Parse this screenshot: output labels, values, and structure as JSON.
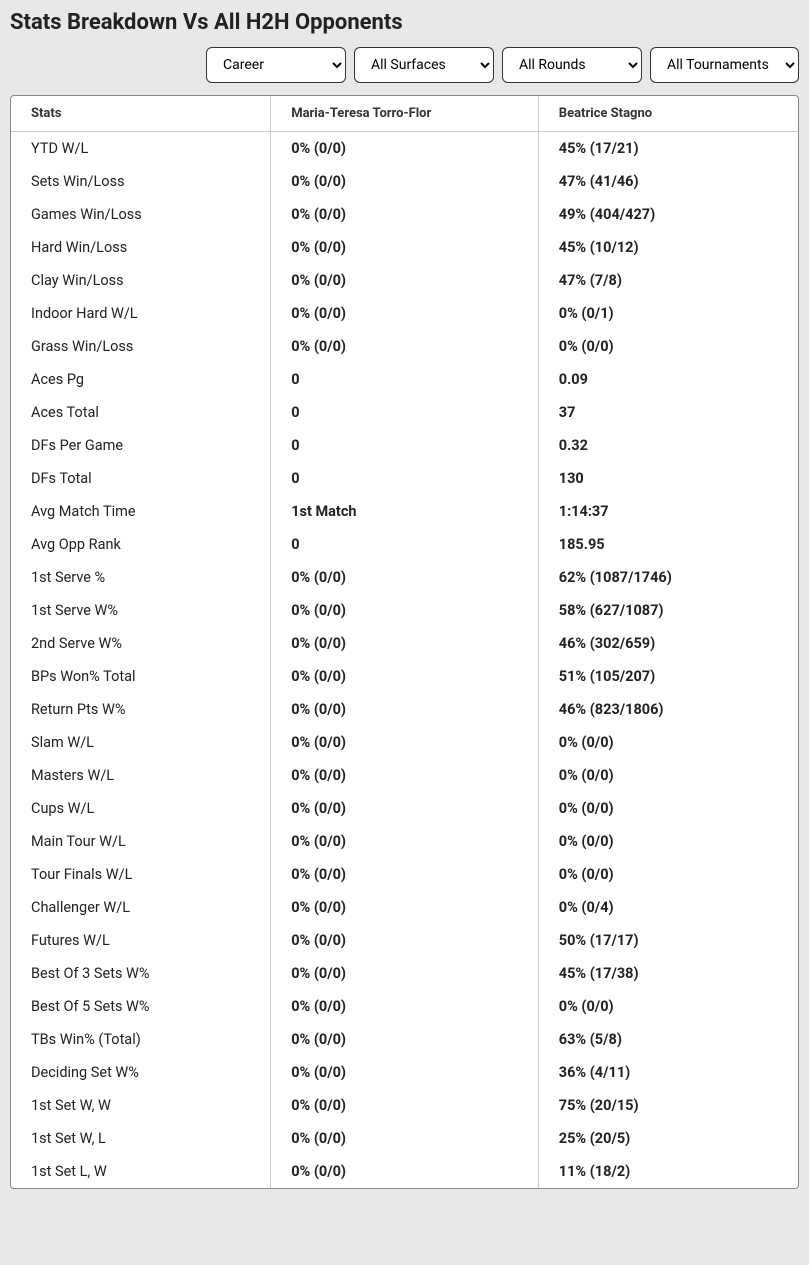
{
  "title": "Stats Breakdown Vs All H2H Opponents",
  "filters": {
    "career": "Career",
    "surfaces": "All Surfaces",
    "rounds": "All Rounds",
    "tournaments": "All Tournaments"
  },
  "headers": {
    "stats": "Stats",
    "player1": "Maria-Teresa Torro-Flor",
    "player2": "Beatrice Stagno"
  },
  "rows": [
    {
      "stat": "YTD W/L",
      "p1": "0% (0/0)",
      "p2": "45% (17/21)"
    },
    {
      "stat": "Sets Win/Loss",
      "p1": "0% (0/0)",
      "p2": "47% (41/46)"
    },
    {
      "stat": "Games Win/Loss",
      "p1": "0% (0/0)",
      "p2": "49% (404/427)"
    },
    {
      "stat": "Hard Win/Loss",
      "p1": "0% (0/0)",
      "p2": "45% (10/12)"
    },
    {
      "stat": "Clay Win/Loss",
      "p1": "0% (0/0)",
      "p2": "47% (7/8)"
    },
    {
      "stat": "Indoor Hard W/L",
      "p1": "0% (0/0)",
      "p2": "0% (0/1)"
    },
    {
      "stat": "Grass Win/Loss",
      "p1": "0% (0/0)",
      "p2": "0% (0/0)"
    },
    {
      "stat": "Aces Pg",
      "p1": "0",
      "p2": "0.09"
    },
    {
      "stat": "Aces Total",
      "p1": "0",
      "p2": "37"
    },
    {
      "stat": "DFs Per Game",
      "p1": "0",
      "p2": "0.32"
    },
    {
      "stat": "DFs Total",
      "p1": "0",
      "p2": "130"
    },
    {
      "stat": "Avg Match Time",
      "p1": "1st Match",
      "p2": "1:14:37"
    },
    {
      "stat": "Avg Opp Rank",
      "p1": "0",
      "p2": "185.95"
    },
    {
      "stat": "1st Serve %",
      "p1": "0% (0/0)",
      "p2": "62% (1087/1746)"
    },
    {
      "stat": "1st Serve W%",
      "p1": "0% (0/0)",
      "p2": "58% (627/1087)"
    },
    {
      "stat": "2nd Serve W%",
      "p1": "0% (0/0)",
      "p2": "46% (302/659)"
    },
    {
      "stat": "BPs Won% Total",
      "p1": "0% (0/0)",
      "p2": "51% (105/207)"
    },
    {
      "stat": "Return Pts W%",
      "p1": "0% (0/0)",
      "p2": "46% (823/1806)"
    },
    {
      "stat": "Slam W/L",
      "p1": "0% (0/0)",
      "p2": "0% (0/0)"
    },
    {
      "stat": "Masters W/L",
      "p1": "0% (0/0)",
      "p2": "0% (0/0)"
    },
    {
      "stat": "Cups W/L",
      "p1": "0% (0/0)",
      "p2": "0% (0/0)"
    },
    {
      "stat": "Main Tour W/L",
      "p1": "0% (0/0)",
      "p2": "0% (0/0)"
    },
    {
      "stat": "Tour Finals W/L",
      "p1": "0% (0/0)",
      "p2": "0% (0/0)"
    },
    {
      "stat": "Challenger W/L",
      "p1": "0% (0/0)",
      "p2": "0% (0/4)"
    },
    {
      "stat": "Futures W/L",
      "p1": "0% (0/0)",
      "p2": "50% (17/17)"
    },
    {
      "stat": "Best Of 3 Sets W%",
      "p1": "0% (0/0)",
      "p2": "45% (17/38)"
    },
    {
      "stat": "Best Of 5 Sets W%",
      "p1": "0% (0/0)",
      "p2": "0% (0/0)"
    },
    {
      "stat": "TBs Win% (Total)",
      "p1": "0% (0/0)",
      "p2": "63% (5/8)"
    },
    {
      "stat": "Deciding Set W%",
      "p1": "0% (0/0)",
      "p2": "36% (4/11)"
    },
    {
      "stat": "1st Set W, W",
      "p1": "0% (0/0)",
      "p2": "75% (20/15)"
    },
    {
      "stat": "1st Set W, L",
      "p1": "0% (0/0)",
      "p2": "25% (20/5)"
    },
    {
      "stat": "1st Set L, W",
      "p1": "0% (0/0)",
      "p2": "11% (18/2)"
    }
  ]
}
